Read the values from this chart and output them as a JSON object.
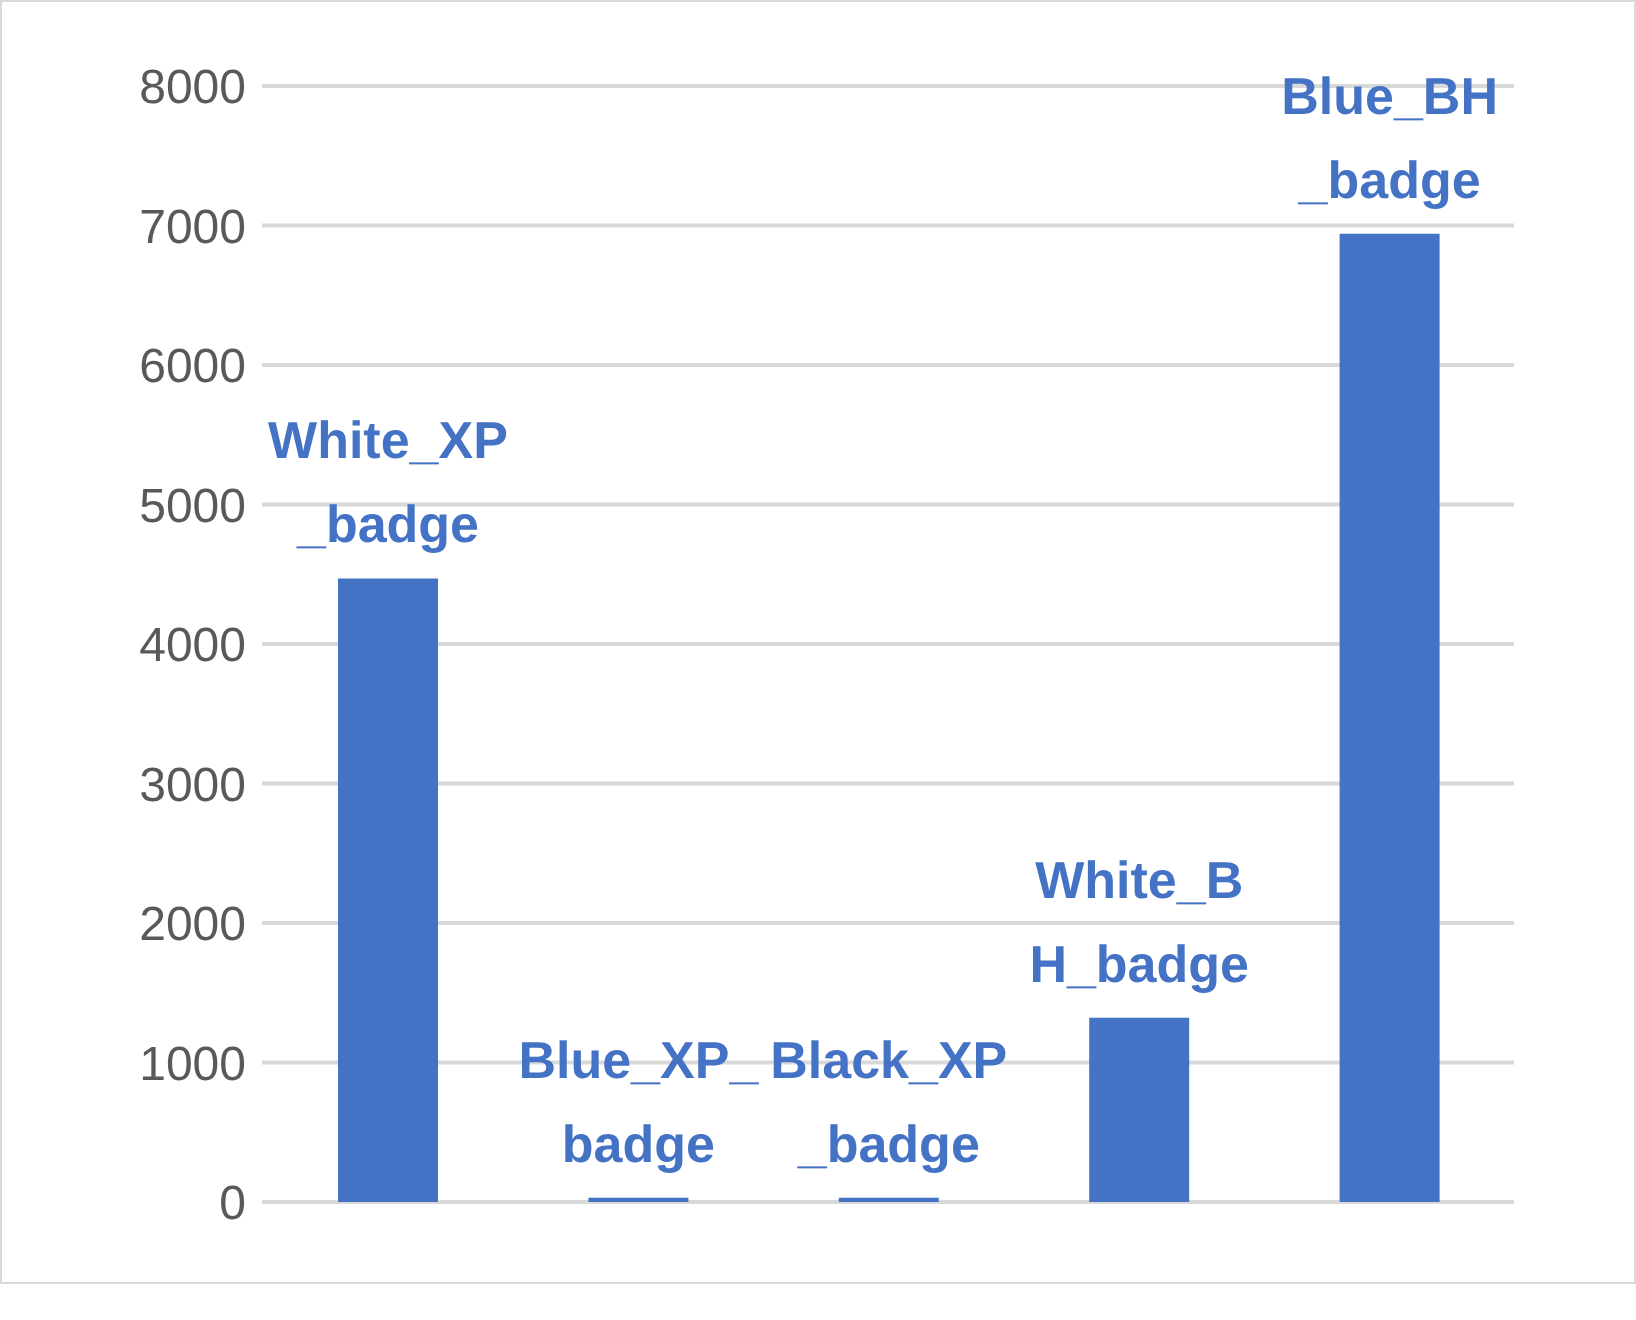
{
  "chart_data": {
    "type": "bar",
    "categories": [
      "White_XP_badge",
      "Blue_XP_badge",
      "Black_XP_badge",
      "White_BH_badge",
      "Blue_BH_badge"
    ],
    "values": [
      4470,
      30,
      30,
      1320,
      6940
    ],
    "color": "#4472c4",
    "ylim": [
      0,
      8000
    ],
    "yticks": [
      0,
      1000,
      2000,
      3000,
      4000,
      5000,
      6000,
      7000,
      8000
    ],
    "grid": "y",
    "tick_labels": "y",
    "legend": false
  }
}
